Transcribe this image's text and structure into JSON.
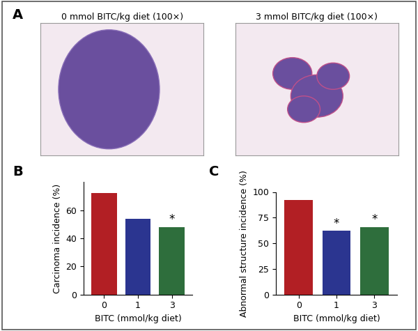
{
  "panel_a": {
    "label": "A",
    "images": [
      {
        "title": "0 mmol BITC/kg diet (100×)"
      },
      {
        "title": "3 mmol BITC/kg diet (100×)"
      }
    ]
  },
  "chart_data": [
    {
      "type": "bar",
      "panel_label": "B",
      "x_label": "BITC (mmol/kg diet)",
      "y_label": "Carcinoma incidence (%)",
      "categories": [
        "0",
        "1",
        "3"
      ],
      "values": [
        72,
        54,
        48
      ],
      "colors": [
        "#b21f24",
        "#2b3590",
        "#2e6e3c"
      ],
      "ylim": [
        0,
        80
      ],
      "yticks": [
        0,
        20,
        40,
        60
      ],
      "annotations": [
        {
          "category": "3",
          "text": "*"
        }
      ]
    },
    {
      "type": "bar",
      "panel_label": "C",
      "x_label": "BITC (mmol/kg diet)",
      "y_label": "Abnormal structure incidence (%)",
      "categories": [
        "0",
        "1",
        "3"
      ],
      "values": [
        92,
        62,
        66
      ],
      "colors": [
        "#b21f24",
        "#2b3590",
        "#2e6e3c"
      ],
      "ylim": [
        0,
        100
      ],
      "yticks": [
        0,
        25,
        50,
        75,
        100
      ],
      "annotations": [
        {
          "category": "1",
          "text": "*"
        },
        {
          "category": "3",
          "text": "*"
        }
      ]
    }
  ]
}
